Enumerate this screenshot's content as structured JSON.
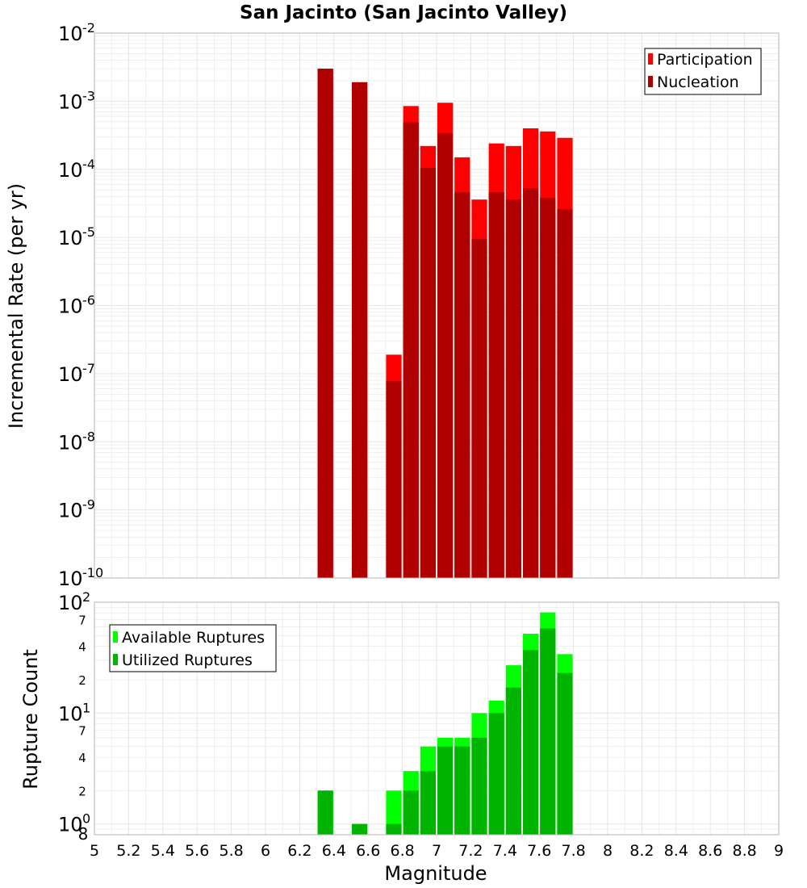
{
  "figure": {
    "title": "San Jacinto (San Jacinto Valley)",
    "xlabel": "Magnitude"
  },
  "colors": {
    "participation": "#ff0000",
    "nucleation": "#b00000",
    "available": "#00ff00",
    "utilized": "#00b400",
    "grid": "#e6e6e6",
    "frame": "#b4b4b4"
  },
  "chart_data": [
    {
      "type": "bar",
      "ylabel": "Incremental Rate (per yr)",
      "xlim": [
        5,
        9
      ],
      "ylim": [
        1e-10,
        0.01
      ],
      "yscale": "log",
      "grid": true,
      "legend_placement": "top-right",
      "bin_width": 0.1,
      "x_ticks": [
        "5",
        "5.2",
        "5.4",
        "5.6",
        "5.8",
        "6",
        "6.2",
        "6.4",
        "6.6",
        "6.8",
        "7",
        "7.2",
        "7.4",
        "7.6",
        "7.8",
        "8",
        "8.2",
        "8.4",
        "8.6",
        "8.8",
        "9"
      ],
      "y_ticks": [
        {
          "base": "10",
          "exp": "-2"
        },
        {
          "base": "10",
          "exp": "-3"
        },
        {
          "base": "10",
          "exp": "-4"
        },
        {
          "base": "10",
          "exp": "-5"
        },
        {
          "base": "10",
          "exp": "-6"
        },
        {
          "base": "10",
          "exp": "-7"
        },
        {
          "base": "10",
          "exp": "-8"
        },
        {
          "base": "10",
          "exp": "-9"
        },
        {
          "base": "10",
          "exp": "-10"
        }
      ],
      "series": [
        {
          "name": "Participation",
          "color": "#ff0000",
          "x": [
            6.35,
            6.55,
            6.75,
            6.85,
            6.95,
            7.05,
            7.15,
            7.25,
            7.35,
            7.45,
            7.55,
            7.65,
            7.75
          ],
          "values": [
            0.003,
            0.0019,
            1.9e-07,
            0.00085,
            0.00022,
            0.00095,
            0.00015,
            3.6e-05,
            0.00024,
            0.00022,
            0.0004,
            0.00036,
            0.00029
          ]
        },
        {
          "name": "Nucleation",
          "color": "#b00000",
          "x": [
            6.35,
            6.55,
            6.75,
            6.85,
            6.95,
            7.05,
            7.15,
            7.25,
            7.35,
            7.45,
            7.55,
            7.65,
            7.75
          ],
          "values": [
            0.003,
            0.0019,
            7.8e-08,
            0.00049,
            0.000105,
            0.00034,
            4.6e-05,
            9.5e-06,
            4.6e-05,
            3.6e-05,
            5.3e-05,
            3.8e-05,
            2.6e-05
          ]
        }
      ]
    },
    {
      "type": "bar",
      "ylabel": "Rupture Count",
      "xlabel": "Magnitude",
      "xlim": [
        5,
        9
      ],
      "ylim": [
        0.8,
        100
      ],
      "yscale": "log",
      "grid": true,
      "legend_placement": "top-left",
      "bin_width": 0.1,
      "y_major_ticks": [
        {
          "base": "10",
          "exp": "2"
        },
        {
          "base": "10",
          "exp": "1"
        },
        {
          "base": "10",
          "exp": "0"
        }
      ],
      "y_minor_ticks": [
        {
          "label": "7",
          "value": 70
        },
        {
          "label": "4",
          "value": 40
        },
        {
          "label": "2",
          "value": 20
        },
        {
          "label": "7",
          "value": 7
        },
        {
          "label": "4",
          "value": 4
        },
        {
          "label": "2",
          "value": 2
        },
        {
          "label": "8",
          "value": 0.8
        }
      ],
      "series": [
        {
          "name": "Available Ruptures",
          "color": "#00ff00",
          "x": [
            6.35,
            6.55,
            6.75,
            6.85,
            6.95,
            7.05,
            7.15,
            7.25,
            7.35,
            7.45,
            7.55,
            7.65,
            7.75
          ],
          "values": [
            2,
            1,
            2,
            3,
            5,
            6,
            6,
            10,
            13,
            27,
            52,
            81,
            34
          ]
        },
        {
          "name": "Utilized Ruptures",
          "color": "#00b400",
          "x": [
            6.35,
            6.55,
            6.75,
            6.85,
            6.95,
            7.05,
            7.15,
            7.25,
            7.35,
            7.45,
            7.55,
            7.65,
            7.75
          ],
          "values": [
            2,
            1,
            1,
            2,
            3,
            5,
            5,
            6,
            10,
            17,
            37,
            58,
            23
          ]
        }
      ]
    }
  ]
}
